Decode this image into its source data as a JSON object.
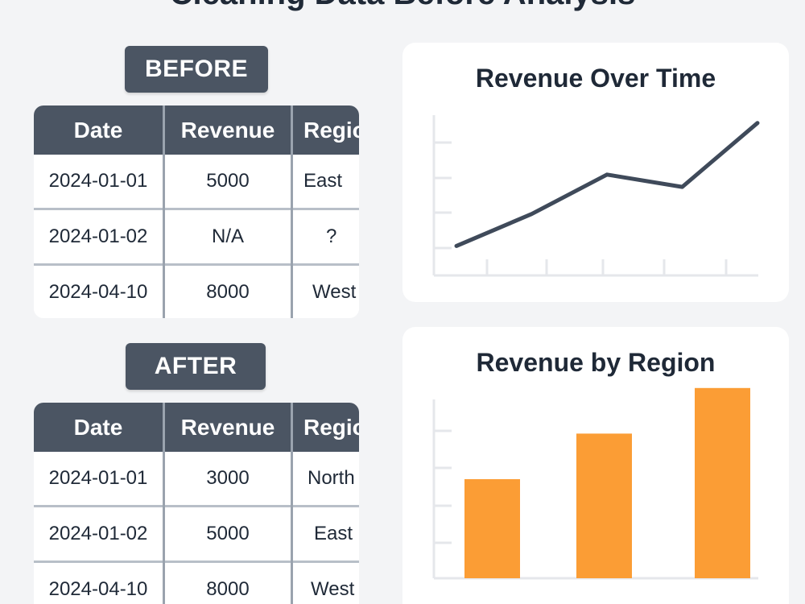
{
  "page": {
    "title_fragment": "Cleaning Data Before Analysis"
  },
  "before": {
    "label": "BEFORE",
    "columns": [
      "Date",
      "Revenue",
      "Region"
    ],
    "rows": [
      [
        "2024-01-01",
        "5000",
        "East"
      ],
      [
        "2024-01-02",
        "N/A",
        "?"
      ],
      [
        "2024-04-10",
        "8000",
        "West"
      ]
    ]
  },
  "after": {
    "label": "AFTER",
    "columns": [
      "Date",
      "Revenue",
      "Region"
    ],
    "rows": [
      [
        "2024-01-01",
        "3000",
        "North"
      ],
      [
        "2024-01-02",
        "5000",
        "East"
      ],
      [
        "2024-04-10",
        "8000",
        "West"
      ]
    ]
  },
  "colors": {
    "header_bg": "#4b5563",
    "line": "#3f4a5a",
    "bar": "#fb9d35",
    "axis": "#e5e7eb"
  },
  "chart_data": [
    {
      "type": "line",
      "title": "Revenue Over Time",
      "xlabel": "",
      "ylabel": "",
      "x": [
        0,
        1,
        2,
        3,
        4
      ],
      "values": [
        1.2,
        2.5,
        4.1,
        3.6,
        6.2
      ],
      "ylim": [
        0,
        7.5
      ],
      "grid": false
    },
    {
      "type": "bar",
      "title": "Revenue by Region",
      "xlabel": "",
      "ylabel": "",
      "categories": [
        "",
        "",
        ""
      ],
      "values": [
        2.5,
        3.65,
        4.8
      ],
      "ylim": [
        0,
        5
      ],
      "grid": false
    }
  ]
}
